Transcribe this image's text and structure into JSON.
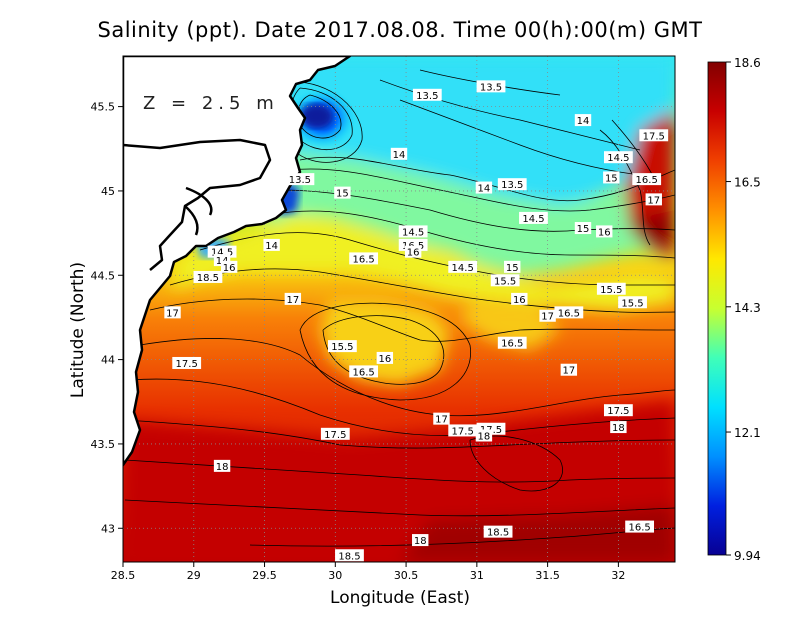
{
  "title": "Salinity (ppt). Date 2017.08.08. Time 00(h):00(m) GMT",
  "depth_label": "Z = 2.5 m",
  "x_axis": {
    "label": "Longitude (East)",
    "min": 28.5,
    "max": 32.4,
    "ticks": [
      "28.5",
      "29",
      "29.5",
      "30",
      "30.5",
      "31",
      "31.5",
      "32"
    ]
  },
  "y_axis": {
    "label": "Latitude (North)",
    "min": 42.8,
    "max": 45.8,
    "ticks": [
      "43",
      "43.5",
      "44",
      "44.5",
      "45",
      "45.5"
    ]
  },
  "colorbar": {
    "min": 9.94,
    "max": 18.6,
    "tick_labels": [
      "18.6",
      "16.5",
      "14.3",
      "12.1",
      "9.94"
    ],
    "tick_values": [
      18.6,
      16.5,
      14.3,
      12.1,
      9.94
    ],
    "colors": [
      "#080093",
      "#0020e0",
      "#0090ff",
      "#00e0ff",
      "#40ffb8",
      "#c8ff30",
      "#ffe800",
      "#ff9000",
      "#f04000",
      "#c80000",
      "#820000"
    ]
  },
  "contour_labels": [
    {
      "text": "13.5",
      "lon": 31.1,
      "lat": 45.62
    },
    {
      "text": "13.5",
      "lon": 30.65,
      "lat": 45.57
    },
    {
      "text": "14",
      "lon": 31.75,
      "lat": 45.42
    },
    {
      "text": "17.5",
      "lon": 32.25,
      "lat": 45.33
    },
    {
      "text": "14.5",
      "lon": 32.0,
      "lat": 45.2
    },
    {
      "text": "14",
      "lon": 30.45,
      "lat": 45.22
    },
    {
      "text": "15",
      "lon": 31.95,
      "lat": 45.08
    },
    {
      "text": "16.5",
      "lon": 32.2,
      "lat": 45.07
    },
    {
      "text": "13.5",
      "lon": 29.75,
      "lat": 45.07
    },
    {
      "text": "14",
      "lon": 31.05,
      "lat": 45.02
    },
    {
      "text": "13.5",
      "lon": 31.25,
      "lat": 45.04
    },
    {
      "text": "15",
      "lon": 30.05,
      "lat": 44.99
    },
    {
      "text": "17",
      "lon": 32.25,
      "lat": 44.95
    },
    {
      "text": "14.5",
      "lon": 31.4,
      "lat": 44.84
    },
    {
      "text": "15",
      "lon": 31.75,
      "lat": 44.78
    },
    {
      "text": "16",
      "lon": 31.9,
      "lat": 44.76
    },
    {
      "text": "14.5",
      "lon": 30.55,
      "lat": 44.76
    },
    {
      "text": "14",
      "lon": 29.55,
      "lat": 44.68
    },
    {
      "text": "16.5",
      "lon": 30.55,
      "lat": 44.68
    },
    {
      "text": "16",
      "lon": 30.55,
      "lat": 44.64
    },
    {
      "text": "14.5",
      "lon": 29.2,
      "lat": 44.64
    },
    {
      "text": "14",
      "lon": 29.2,
      "lat": 44.59
    },
    {
      "text": "16.5",
      "lon": 30.2,
      "lat": 44.6
    },
    {
      "text": "16",
      "lon": 29.25,
      "lat": 44.55
    },
    {
      "text": "14.5",
      "lon": 30.9,
      "lat": 44.55
    },
    {
      "text": "15",
      "lon": 31.25,
      "lat": 44.55
    },
    {
      "text": "18.5",
      "lon": 29.1,
      "lat": 44.49
    },
    {
      "text": "15.5",
      "lon": 31.2,
      "lat": 44.47
    },
    {
      "text": "15.5",
      "lon": 31.95,
      "lat": 44.42
    },
    {
      "text": "17",
      "lon": 29.7,
      "lat": 44.36
    },
    {
      "text": "16",
      "lon": 31.3,
      "lat": 44.36
    },
    {
      "text": "15.5",
      "lon": 32.1,
      "lat": 44.34
    },
    {
      "text": "17",
      "lon": 28.85,
      "lat": 44.28
    },
    {
      "text": "16.5",
      "lon": 31.65,
      "lat": 44.28
    },
    {
      "text": "17",
      "lon": 31.5,
      "lat": 44.26
    },
    {
      "text": "16.5",
      "lon": 31.25,
      "lat": 44.1
    },
    {
      "text": "15.5",
      "lon": 30.05,
      "lat": 44.08
    },
    {
      "text": "16",
      "lon": 30.35,
      "lat": 44.01
    },
    {
      "text": "17.5",
      "lon": 28.95,
      "lat": 43.98
    },
    {
      "text": "17",
      "lon": 31.65,
      "lat": 43.94
    },
    {
      "text": "16.5",
      "lon": 30.2,
      "lat": 43.93
    },
    {
      "text": "17.5",
      "lon": 32.0,
      "lat": 43.7
    },
    {
      "text": "17",
      "lon": 30.75,
      "lat": 43.65
    },
    {
      "text": "18",
      "lon": 32.0,
      "lat": 43.6
    },
    {
      "text": "17.5",
      "lon": 30.9,
      "lat": 43.58
    },
    {
      "text": "17.5",
      "lon": 31.1,
      "lat": 43.59
    },
    {
      "text": "18",
      "lon": 31.05,
      "lat": 43.55
    },
    {
      "text": "17.5",
      "lon": 30.0,
      "lat": 43.56
    },
    {
      "text": "18",
      "lon": 29.2,
      "lat": 43.37
    },
    {
      "text": "16.5",
      "lon": 32.15,
      "lat": 43.01
    },
    {
      "text": "18.5",
      "lon": 31.15,
      "lat": 42.98
    },
    {
      "text": "18",
      "lon": 30.6,
      "lat": 42.93
    },
    {
      "text": "18.5",
      "lon": 30.1,
      "lat": 42.84
    }
  ]
}
